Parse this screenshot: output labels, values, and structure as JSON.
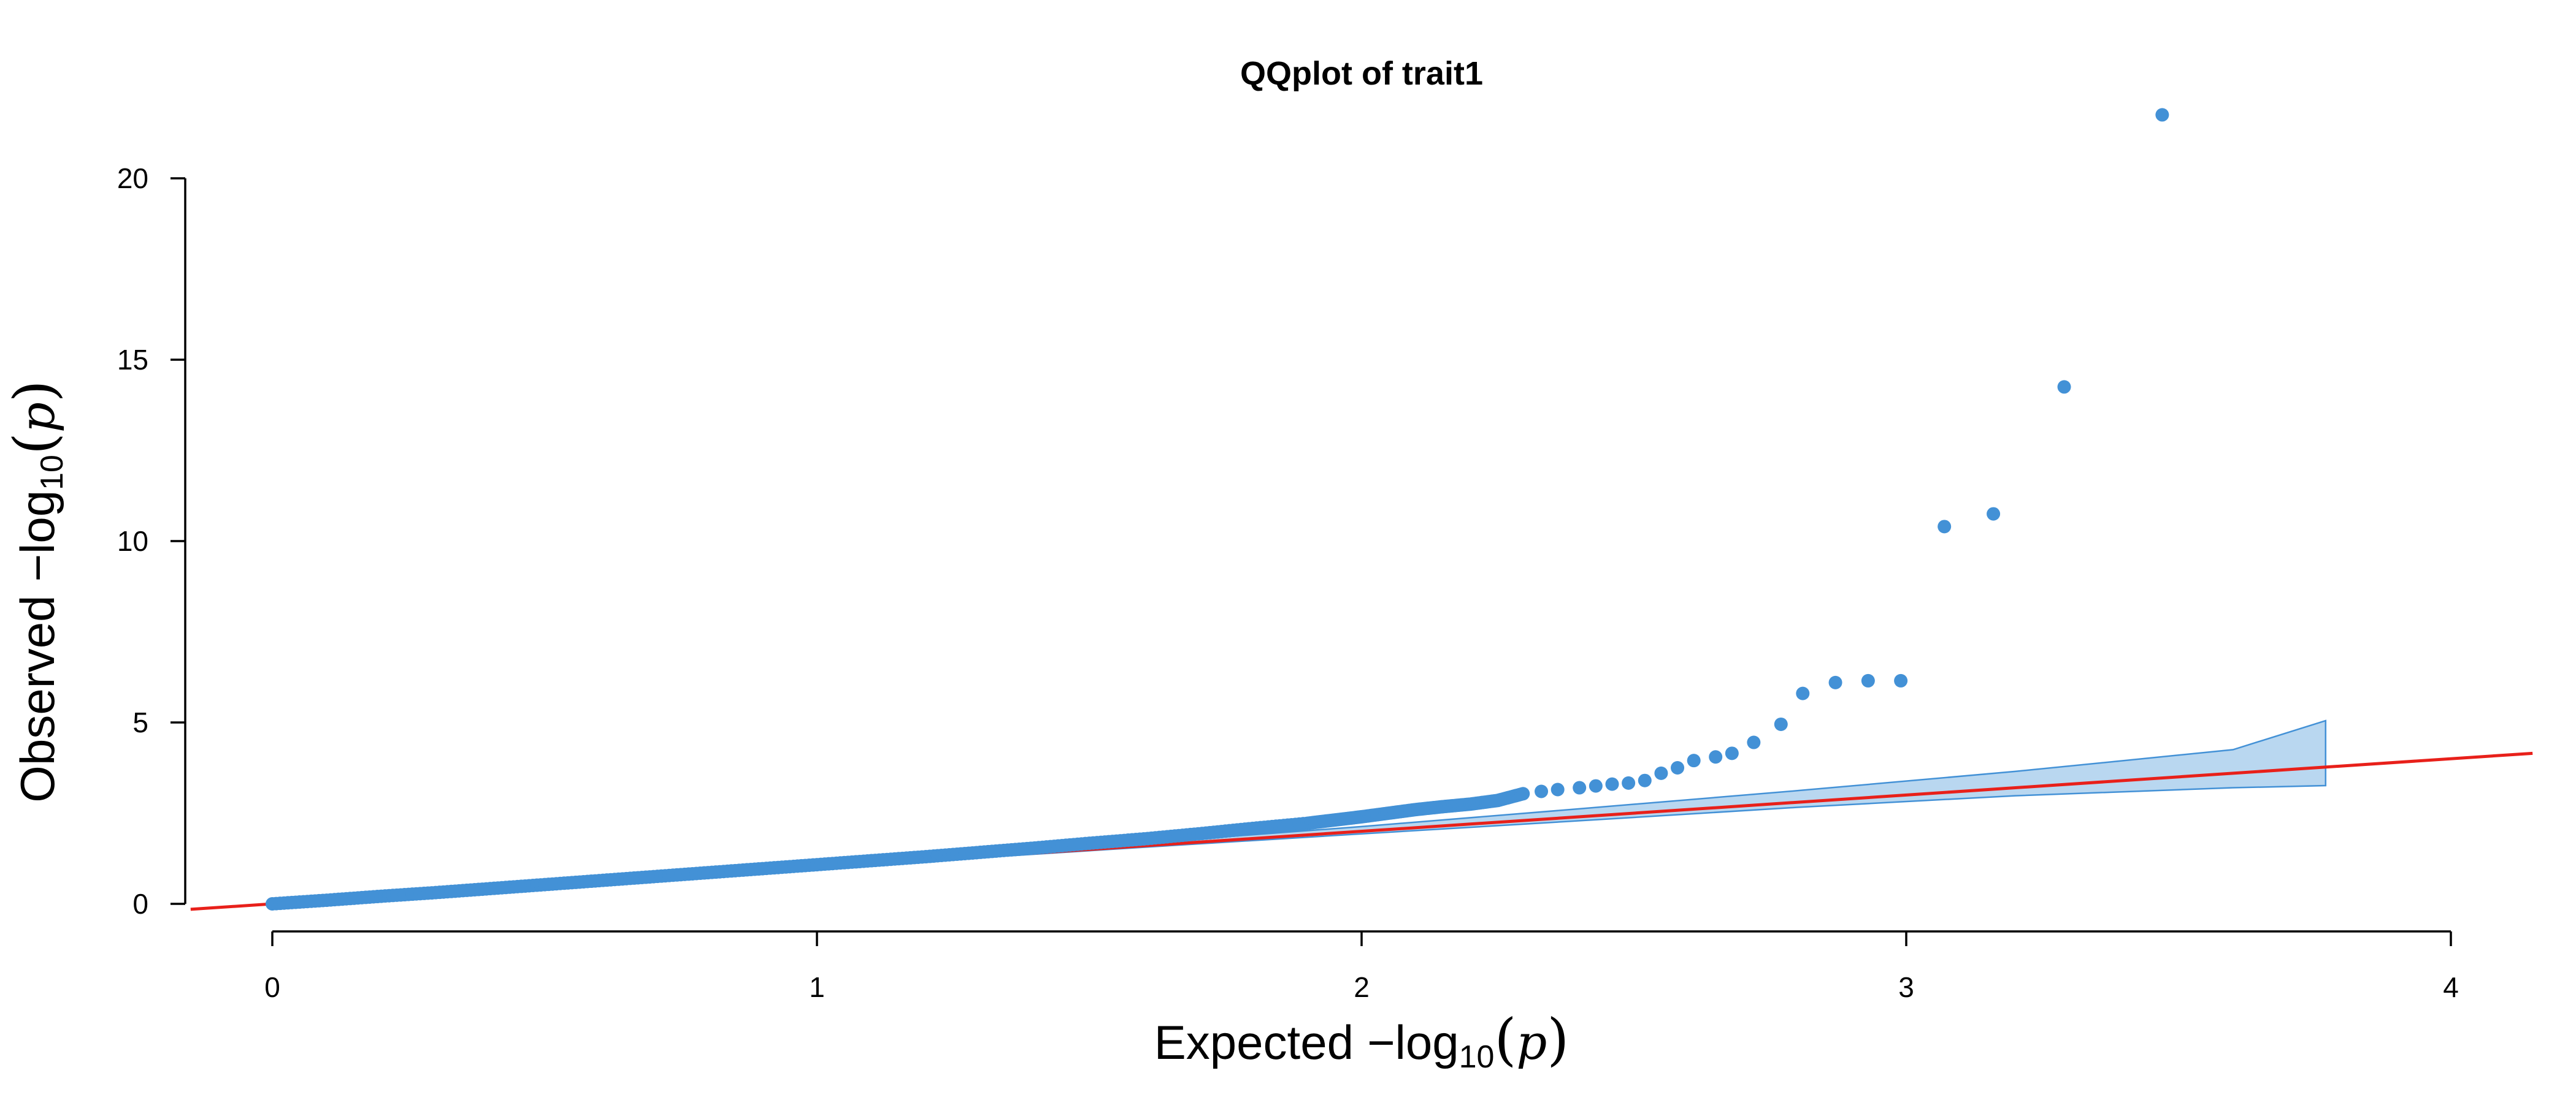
{
  "chart_data": {
    "type": "scatter",
    "title": "QQplot of trait1",
    "xlabel": {
      "prefix": "Expected",
      "minus": "−",
      "log": "log",
      "base": "10",
      "open": "(",
      "var": "p",
      "close": ")"
    },
    "ylabel": {
      "prefix": "Observed",
      "minus": "−",
      "log": "log",
      "base": "10",
      "open": "(",
      "var": "p",
      "close": ")"
    },
    "xlim": [
      0,
      4
    ],
    "ylim": [
      0,
      20
    ],
    "xticks": [
      0,
      1,
      2,
      3,
      4
    ],
    "xtick_labels": [
      "0",
      "1",
      "2",
      "3",
      "4"
    ],
    "yticks": [
      0,
      5,
      10,
      15,
      20
    ],
    "ytick_labels": [
      "0",
      "5",
      "10",
      "15",
      "20"
    ],
    "grid": false,
    "legend": "none",
    "point_color": "#4391D6",
    "band_fill_color": "#B9D7F0",
    "band_edge_color": "#4391D6",
    "line_color": "#E8201A",
    "reference_line": {
      "intercept": 0,
      "slope": 1
    },
    "confidence_band": {
      "x": [
        1.2,
        1.6,
        2.0,
        2.4,
        2.8,
        3.2,
        3.6,
        3.77
      ],
      "upper": [
        1.24,
        1.68,
        2.13,
        2.62,
        3.12,
        3.65,
        4.25,
        5.05
      ],
      "lower": [
        1.18,
        1.56,
        1.93,
        2.29,
        2.66,
        2.98,
        3.2,
        3.26
      ]
    },
    "dense_points": {
      "x": [
        0.0,
        0.1,
        0.2,
        0.3,
        0.4,
        0.5,
        0.6,
        0.7,
        0.8,
        0.9,
        1.0,
        1.1,
        1.2,
        1.3,
        1.4,
        1.5,
        1.6,
        1.7,
        1.8,
        1.9,
        1.95,
        2.0,
        2.05,
        2.1,
        2.15,
        2.2,
        2.25,
        2.3
      ],
      "y": [
        0.0,
        0.1,
        0.21,
        0.31,
        0.42,
        0.53,
        0.64,
        0.75,
        0.86,
        0.97,
        1.08,
        1.19,
        1.3,
        1.42,
        1.54,
        1.67,
        1.79,
        1.93,
        2.08,
        2.22,
        2.31,
        2.4,
        2.5,
        2.6,
        2.68,
        2.75,
        2.85,
        3.05
      ]
    },
    "points": {
      "x": [
        2.33,
        2.36,
        2.4,
        2.43,
        2.46,
        2.49,
        2.52,
        2.55,
        2.58,
        2.61,
        2.65,
        2.68,
        2.72,
        2.77,
        2.81,
        2.87,
        2.93,
        2.99,
        3.07,
        3.16,
        3.29,
        3.47
      ],
      "y": [
        3.1,
        3.15,
        3.2,
        3.25,
        3.3,
        3.33,
        3.4,
        3.6,
        3.75,
        3.95,
        4.05,
        4.15,
        4.45,
        4.95,
        5.8,
        6.1,
        6.15,
        6.15,
        10.4,
        10.75,
        14.25,
        21.75
      ]
    }
  }
}
